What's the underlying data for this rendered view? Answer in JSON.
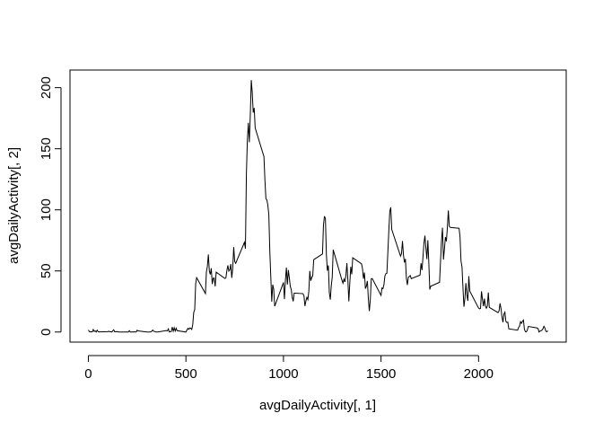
{
  "chart_data": {
    "type": "line",
    "xlabel": "avgDailyActivity[, 1]",
    "ylabel": "avgDailyActivity[, 2]",
    "xlim": [
      -94.2,
      2449.2
    ],
    "ylim": [
      -8.25,
      214.42
    ],
    "xticks": [
      0,
      500,
      1000,
      1500,
      2000
    ],
    "yticks": [
      0,
      50,
      100,
      150,
      200
    ],
    "color": "#000000",
    "x": [
      0,
      5,
      10,
      15,
      20,
      25,
      30,
      35,
      40,
      45,
      50,
      55,
      100,
      105,
      110,
      115,
      120,
      125,
      130,
      135,
      140,
      145,
      150,
      155,
      200,
      205,
      210,
      215,
      220,
      225,
      230,
      235,
      240,
      245,
      250,
      255,
      300,
      305,
      310,
      315,
      320,
      325,
      330,
      335,
      340,
      345,
      350,
      355,
      400,
      405,
      410,
      415,
      420,
      425,
      430,
      435,
      440,
      445,
      450,
      455,
      500,
      505,
      510,
      515,
      520,
      525,
      530,
      535,
      540,
      545,
      550,
      555,
      600,
      605,
      610,
      615,
      620,
      625,
      630,
      635,
      640,
      645,
      650,
      655,
      700,
      705,
      710,
      715,
      720,
      725,
      730,
      735,
      740,
      745,
      750,
      755,
      800,
      805,
      810,
      815,
      820,
      825,
      830,
      835,
      840,
      845,
      850,
      855,
      900,
      905,
      910,
      915,
      920,
      925,
      930,
      935,
      940,
      945,
      950,
      955,
      1000,
      1005,
      1010,
      1015,
      1020,
      1025,
      1030,
      1035,
      1040,
      1045,
      1050,
      1055,
      1100,
      1105,
      1110,
      1115,
      1120,
      1125,
      1130,
      1135,
      1140,
      1145,
      1150,
      1155,
      1200,
      1205,
      1210,
      1215,
      1220,
      1225,
      1230,
      1235,
      1240,
      1245,
      1250,
      1255,
      1300,
      1305,
      1310,
      1315,
      1320,
      1325,
      1330,
      1335,
      1340,
      1345,
      1350,
      1355,
      1400,
      1405,
      1410,
      1415,
      1420,
      1425,
      1430,
      1435,
      1440,
      1445,
      1450,
      1455,
      1500,
      1505,
      1510,
      1515,
      1520,
      1525,
      1530,
      1535,
      1540,
      1545,
      1550,
      1555,
      1600,
      1605,
      1610,
      1615,
      1620,
      1625,
      1630,
      1635,
      1640,
      1645,
      1650,
      1655,
      1700,
      1705,
      1710,
      1715,
      1720,
      1725,
      1730,
      1735,
      1740,
      1745,
      1750,
      1755,
      1800,
      1805,
      1810,
      1815,
      1820,
      1825,
      1830,
      1835,
      1840,
      1845,
      1850,
      1855,
      1900,
      1905,
      1910,
      1915,
      1920,
      1925,
      1930,
      1935,
      1940,
      1945,
      1950,
      1955,
      2000,
      2005,
      2010,
      2015,
      2020,
      2025,
      2030,
      2035,
      2040,
      2045,
      2050,
      2055,
      2100,
      2105,
      2110,
      2115,
      2120,
      2125,
      2130,
      2135,
      2140,
      2145,
      2150,
      2155,
      2200,
      2205,
      2210,
      2215,
      2220,
      2225,
      2230,
      2235,
      2240,
      2245,
      2250,
      2255,
      2300,
      2305,
      2310,
      2315,
      2320,
      2325,
      2330,
      2335,
      2340,
      2345,
      2350,
      2355
    ],
    "values": [
      1.7,
      0.3,
      0.1,
      0.2,
      0.1,
      2.1,
      0.5,
      0.9,
      0,
      1.5,
      0.3,
      0.1,
      0.3,
      0.7,
      0.2,
      0.3,
      0,
      1.1,
      1.8,
      0.2,
      0.2,
      0.4,
      0.3,
      0,
      0,
      0,
      1.1,
      0,
      0,
      0.1,
      0,
      0.2,
      0,
      0,
      1.5,
      0.9,
      0,
      0,
      0,
      0,
      0.2,
      0.6,
      1.6,
      0.6,
      0.5,
      0.1,
      0,
      0,
      1.2,
      0.9,
      2.6,
      0,
      0.3,
      0.4,
      4.1,
      0.7,
      3.5,
      0.8,
      3.1,
      1.1,
      0,
      1.6,
      3,
      2.2,
      3.3,
      3,
      2.1,
      6.1,
      16,
      18.3,
      39.5,
      44.5,
      31.5,
      49.3,
      53.8,
      63.5,
      50,
      47.1,
      52.2,
      39.3,
      44,
      44.2,
      37.4,
      49,
      43.8,
      44.4,
      50.5,
      54.5,
      49.9,
      50.98,
      55.7,
      44.3,
      52.3,
      69.5,
      57.8,
      56.2,
      73.4,
      68.2,
      129.4,
      157.5,
      171.2,
      155.4,
      177.3,
      206.2,
      195.9,
      179.6,
      183.4,
      167,
      143.5,
      124,
      109.1,
      108.1,
      103.7,
      95.97,
      66.2,
      45.2,
      24.8,
      38.8,
      35,
      21.1,
      40.6,
      26.98,
      42.4,
      52.7,
      38.9,
      50.8,
      44.3,
      37.4,
      34.7,
      28.3,
      25.1,
      31.9,
      31.4,
      29.7,
      21.3,
      25.5,
      28.4,
      26.5,
      33.4,
      50,
      42,
      44.6,
      46,
      59.2,
      63.9,
      87.7,
      94.8,
      92.8,
      63.4,
      50.2,
      54.5,
      32.4,
      26.5,
      37.7,
      45.1,
      67.3,
      42.3,
      39.9,
      43.3,
      41,
      46.2,
      56.4,
      42.8,
      25.1,
      40,
      53.5,
      47.3,
      60.8,
      55.8,
      51.96,
      43.6,
      48.7,
      35.5,
      37.5,
      41.8,
      27.5,
      17.1,
      26.1,
      43.6,
      43.8,
      30,
      36.1,
      35.5,
      38.8,
      45.96,
      47.75,
      48.1,
      65.3,
      82.9,
      98.7,
      102.1,
      83.96,
      62.1,
      64.1,
      74.5,
      63.2,
      56.9,
      59.8,
      43.9,
      38.6,
      44.7,
      45.5,
      46.2,
      43.7,
      46.6,
      56.3,
      50.7,
      61.2,
      72.7,
      78.9,
      68.9,
      59.7,
      75.1,
      56.5,
      34.8,
      37.5,
      40.7,
      58,
      74.7,
      85.3,
      59.3,
      67.8,
      77.7,
      74.2,
      85.3,
      99.5,
      86.6,
      85.6,
      84.9,
      77.8,
      58,
      53.4,
      36.3,
      20.7,
      27.4,
      40,
      30.2,
      25.5,
      45.7,
      33.5,
      19.6,
      19,
      19.3,
      33.3,
      26.8,
      21.2,
      27.3,
      21.3,
      19.5,
      21.3,
      32.3,
      20.2,
      15.9,
      17.2,
      23.5,
      19.2,
      12.5,
      8,
      14.7,
      16.3,
      8.7,
      7.8,
      8.1,
      2.6,
      1.5,
      3.7,
      4.8,
      8.5,
      7.1,
      8.7,
      9.8,
      2.2,
      0.3,
      0.1,
      1.6,
      4.6,
      3.3,
      2.8,
      0,
      0.8,
      1,
      1.6,
      2.6,
      4.7,
      3.3,
      0.6,
      0.2,
      1.1
    ]
  }
}
